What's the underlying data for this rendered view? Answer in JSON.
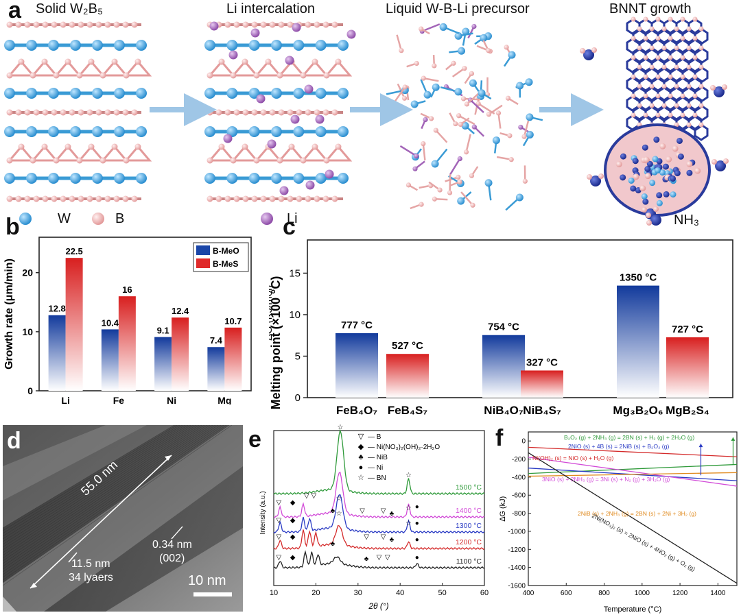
{
  "panel_a": {
    "label": "a",
    "titles": [
      "Solid W₂B₅",
      "Li intercalation",
      "Liquid W-B-Li precursor",
      "BNNT growth"
    ],
    "legend": [
      {
        "symbol": "W",
        "color": "#3a9bd5"
      },
      {
        "symbol": "B",
        "color": "#f2b2b2"
      },
      {
        "symbol": "Li",
        "color": "#a365b8"
      },
      {
        "symbol": "NH₃",
        "color": "#2a3b9c"
      }
    ]
  },
  "chart_data": [
    {
      "panel": "b",
      "type": "bar",
      "ylabel": "Growth rate (μm/min)",
      "categories": [
        "Li",
        "Fe",
        "Ni",
        "Mg"
      ],
      "series": [
        {
          "name": "B-MeO",
          "values": [
            12.8,
            10.4,
            9.1,
            7.4
          ],
          "color": "#1a46a8"
        },
        {
          "name": "B-MeS",
          "values": [
            22.5,
            16,
            12.4,
            10.7
          ],
          "color": "#e02a2a"
        }
      ],
      "value_labels": [
        [
          "12.8",
          "10.4",
          "9.1",
          "7.4"
        ],
        [
          "22.5",
          "16",
          "12.4",
          "10.7"
        ]
      ],
      "ylim": [
        0,
        26
      ],
      "yticks": [
        0,
        10,
        20
      ],
      "legend_position": "top-right"
    },
    {
      "panel": "c",
      "type": "bar",
      "ylabel_outer": "Melting point (×100 °C)",
      "ylabel_inner": "∆G (KJ/mol)",
      "categories": [
        "FeB₄O₇",
        "FeB₄S₇",
        "NiB₄O₇",
        "NiB₄S₇",
        "Mg₃B₂O₆",
        "MgB₂S₄"
      ],
      "values": [
        7.77,
        5.27,
        7.54,
        3.27,
        13.5,
        7.27
      ],
      "value_labels": [
        "777 °C",
        "527 °C",
        "754 °C",
        "327 °C",
        "1350 °C",
        "727 °C"
      ],
      "bar_types": [
        "oxide",
        "sulfide",
        "oxide",
        "sulfide",
        "oxide",
        "sulfide"
      ],
      "colors": {
        "oxide": "#1a46a8",
        "sulfide": "#e02a2a"
      },
      "ylim": [
        0,
        19
      ],
      "yticks": [
        0,
        5,
        10,
        15
      ]
    },
    {
      "panel": "e",
      "type": "line",
      "xlabel": "2θ (°)",
      "ylabel": "Intensity (a.u.)",
      "xlim": [
        10,
        60
      ],
      "xticks": [
        10,
        20,
        30,
        40,
        50,
        60
      ],
      "series": [
        {
          "name": "1100 °C",
          "color": "#222222"
        },
        {
          "name": "1200 °C",
          "color": "#d42a2a"
        },
        {
          "name": "1300 °C",
          "color": "#2a3bc4"
        },
        {
          "name": "1400 °C",
          "color": "#d24cd8"
        },
        {
          "name": "1500 °C",
          "color": "#2f9a3a"
        }
      ],
      "legend": [
        {
          "symbol": "▽",
          "label": "B"
        },
        {
          "symbol": "◆",
          "label": "Ni(NO₃)₂(OH)₂·2H₂O"
        },
        {
          "symbol": "♣",
          "label": "NiB"
        },
        {
          "symbol": "●",
          "label": "Ni"
        },
        {
          "symbol": "☆",
          "label": "BN"
        }
      ],
      "legend_position": "top-right"
    },
    {
      "panel": "f",
      "type": "line",
      "xlabel": "Temperature (°C)",
      "ylabel": "∆G (kJ)",
      "xlim": [
        400,
        1500
      ],
      "ylim": [
        -1600,
        100
      ],
      "xticks": [
        400,
        600,
        800,
        1000,
        1200,
        1400
      ],
      "yticks": [
        0,
        -200,
        -400,
        -600,
        -800,
        -1000,
        -1200,
        -1400,
        -1600
      ],
      "series": [
        {
          "name": "B₂O₂ (g) + 2NH₃ (g) = 2BN (s) + H₂ (g) + 2H₂O (g)",
          "color": "#2f9a3a",
          "x": [
            400,
            1500
          ],
          "y": [
            -360,
            -260
          ]
        },
        {
          "name": "2NiO (s) + 4B (s) = 2NiB (s) + B₂O₂ (g)",
          "color": "#2a3bc4",
          "x": [
            400,
            1500
          ],
          "y": [
            -300,
            -440
          ]
        },
        {
          "name": "Ni(OH)₂ (s) = NiO (s) + H₂O (g)",
          "color": "#d42a2a",
          "x": [
            400,
            1500
          ],
          "y": [
            -70,
            -175
          ]
        },
        {
          "name": "3NiO (s) + 2NH₃ (g) = 3Ni (s) + N₂ (g) + 3H₂O (g)",
          "color": "#d24cd8",
          "x": [
            400,
            1500
          ],
          "y": [
            -180,
            -500
          ]
        },
        {
          "name": "2NiB (s) + 2NH₃ (g) = 2BN (s) + 2Ni + 3H₂ (g)",
          "color": "#e08a1e",
          "x": [
            400,
            1500
          ],
          "y": [
            -390,
            -350
          ]
        },
        {
          "name": "2Ni(NO₃)₂ (s) = 2NiO (s) + 4NO₂ (g) + O₂ (g)",
          "color": "#222222",
          "x": [
            400,
            1500
          ],
          "y": [
            -130,
            -1575
          ]
        }
      ]
    }
  ],
  "panel_d": {
    "label": "d",
    "annotations": [
      "55.0 nm",
      "0.34 nm",
      "(002)",
      "11.5 nm",
      "34 lyaers",
      "10 nm"
    ]
  },
  "panel_labels": {
    "b": "b",
    "c": "c",
    "e": "e",
    "f": "f"
  }
}
